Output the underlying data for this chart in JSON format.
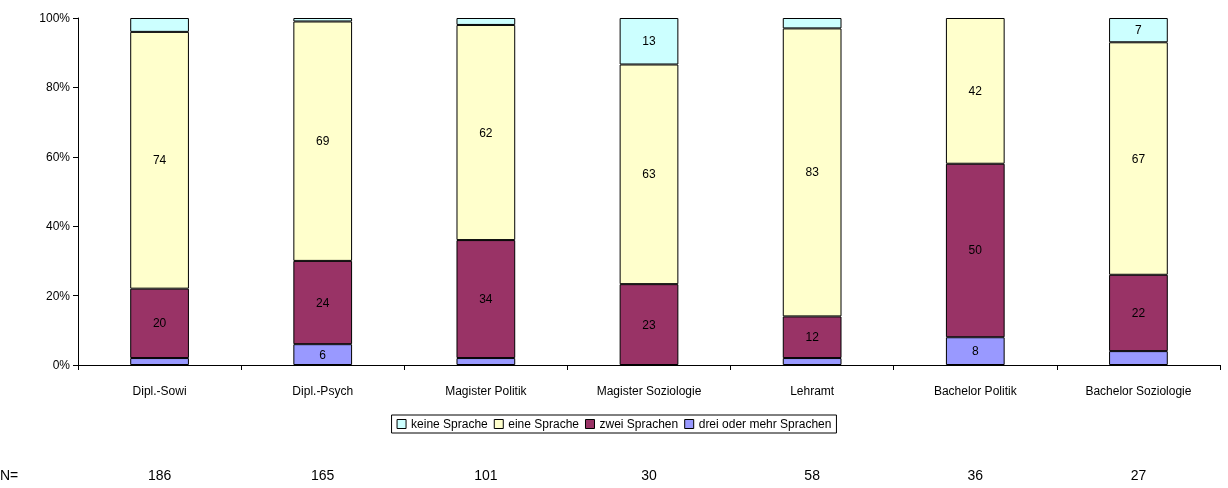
{
  "chart_data": {
    "type": "bar",
    "stacked": true,
    "categories": [
      "Dipl.-Sowi",
      "Dipl.-Psych",
      "Magister Politik",
      "Magister Soziologie",
      "Lehramt",
      "Bachelor Politik",
      "Bachelor Soziologie"
    ],
    "series": [
      {
        "name": "drei oder mehr Sprachen",
        "color": "#9999ff",
        "values": [
          2,
          6,
          2,
          null,
          2,
          8,
          4
        ],
        "value_labels": [
          null,
          "6",
          null,
          null,
          null,
          "8",
          null
        ]
      },
      {
        "name": "zwei Sprachen",
        "color": "#993366",
        "values": [
          20,
          24,
          34,
          23.3,
          12,
          50,
          22
        ],
        "value_labels": [
          "20",
          "24",
          "34",
          "23",
          "12",
          "50",
          "22"
        ]
      },
      {
        "name": "eine Sprache",
        "color": "#ffffcc",
        "values": [
          74,
          69,
          62,
          63.3,
          83,
          42,
          67
        ],
        "value_labels": [
          "74",
          "69",
          "62",
          "63",
          "83",
          "42",
          "67"
        ]
      },
      {
        "name": "keine Sprache",
        "color": "#ccffff",
        "values": [
          4,
          1,
          2,
          13.4,
          3,
          null,
          7
        ],
        "value_labels": [
          null,
          null,
          null,
          "13",
          null,
          null,
          "7"
        ]
      }
    ],
    "ylim": [
      0,
      100
    ],
    "yticks": [
      {
        "value": 0,
        "label": "0%"
      },
      {
        "value": 20,
        "label": "20%"
      },
      {
        "value": 40,
        "label": "40%"
      },
      {
        "value": 60,
        "label": "60%"
      },
      {
        "value": 80,
        "label": "80%"
      },
      {
        "value": 100,
        "label": "100%"
      }
    ],
    "grid": false,
    "legend": "bottom",
    "annotations": [
      "N=",
      "186",
      "165",
      "101",
      "30",
      "58",
      "36",
      "27"
    ]
  }
}
